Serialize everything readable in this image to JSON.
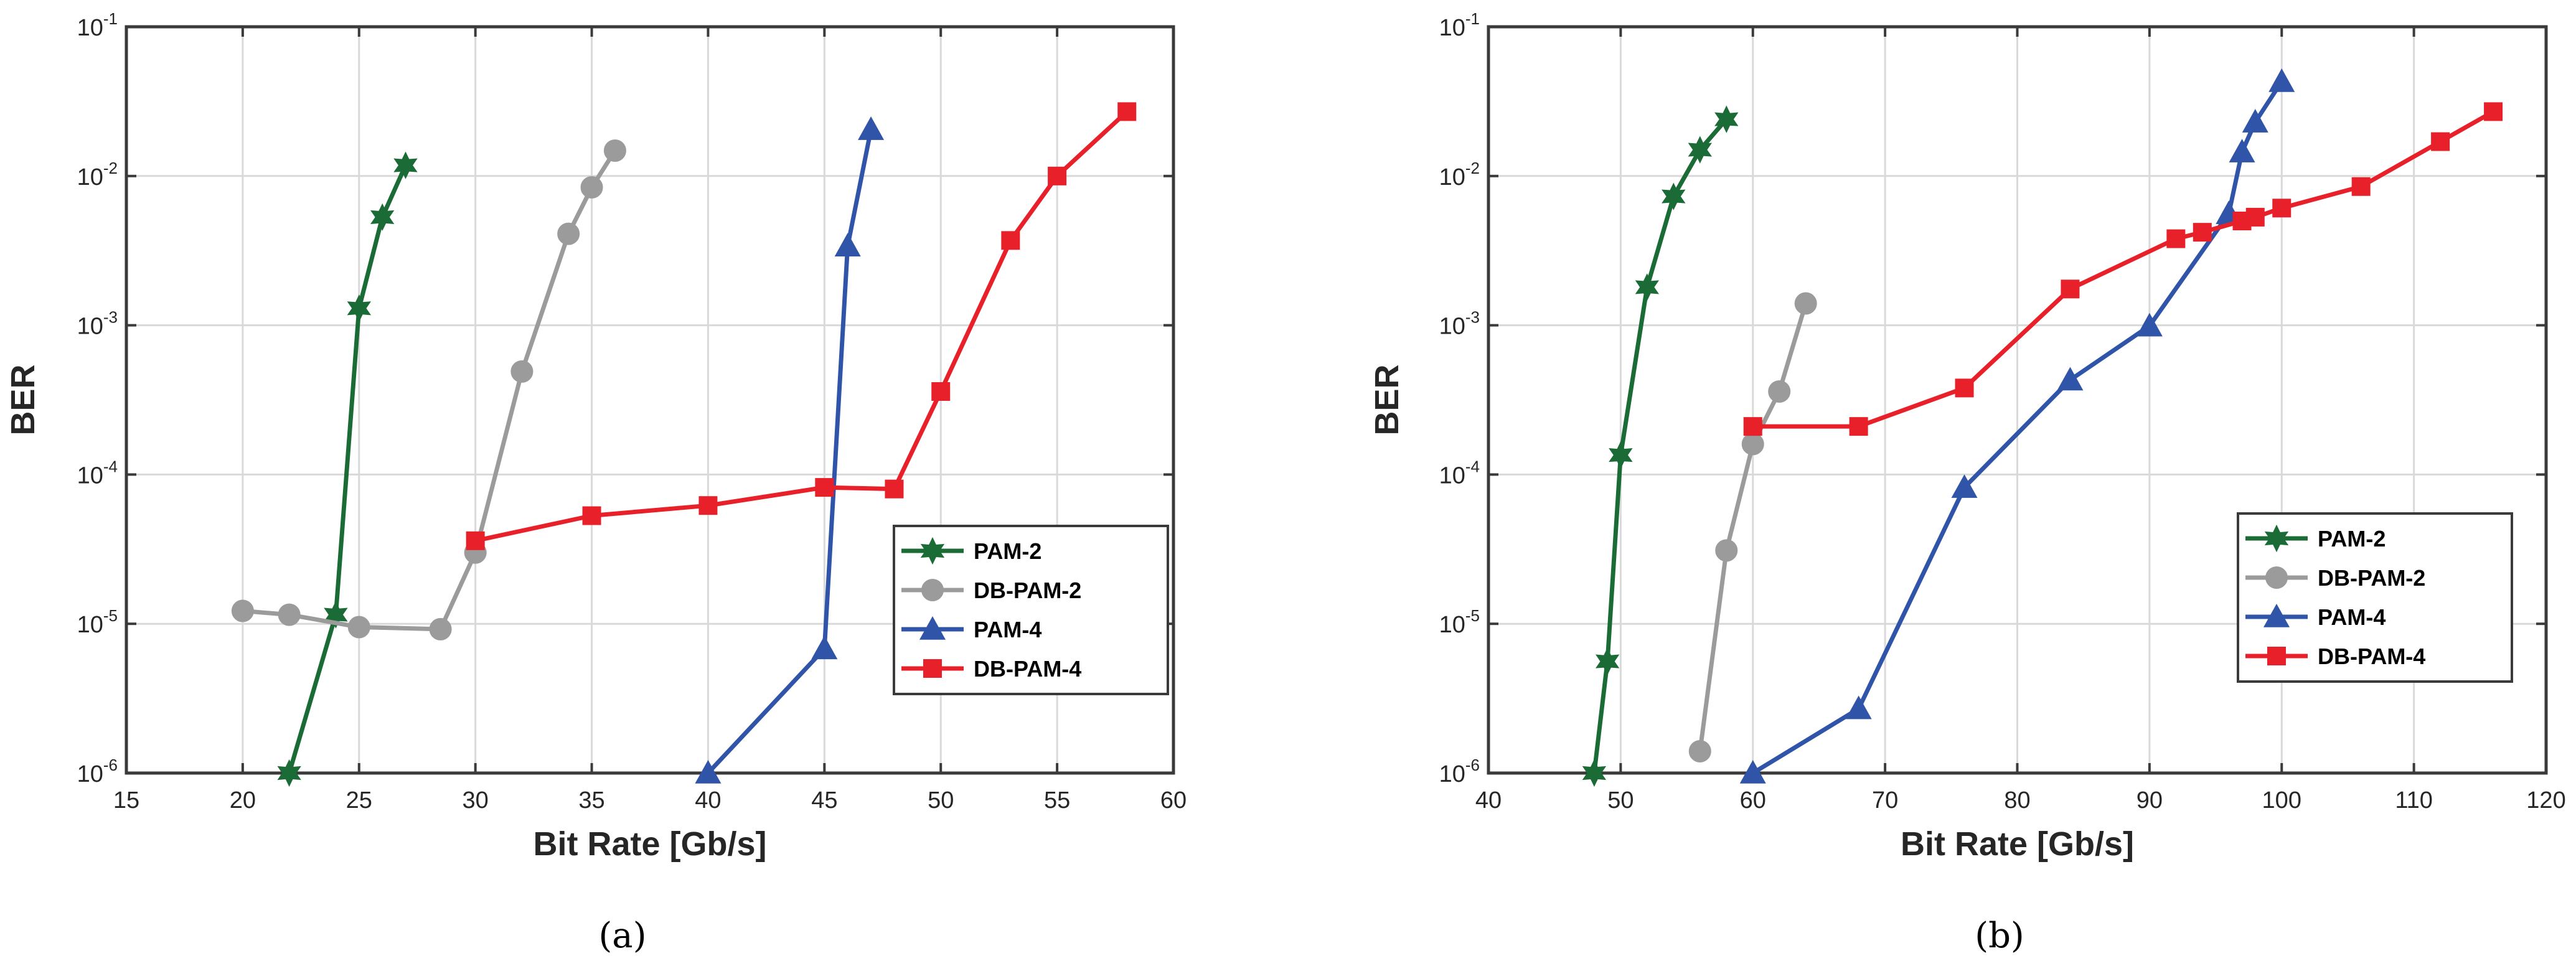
{
  "chart_data": [
    {
      "type": "line",
      "caption": "(a)",
      "title": "",
      "xlabel": "Bit Rate [Gb/s]",
      "ylabel": "BER",
      "xlim": [
        15,
        60
      ],
      "ylim": [
        1e-06,
        0.1
      ],
      "yscale": "log",
      "grid": true,
      "legend_position": "bottom-right",
      "x_ticks": [
        15,
        20,
        25,
        30,
        35,
        40,
        45,
        50,
        55,
        60
      ],
      "y_ticks": [
        -6,
        -5,
        -4,
        -3,
        -2,
        -1
      ],
      "series": [
        {
          "name": "PAM-2",
          "color": "#1a6b35",
          "marker": "star",
          "x": [
            22,
            24,
            25,
            26,
            27
          ],
          "y": [
            1e-06,
            1.15e-05,
            0.0013,
            0.0053,
            0.0118
          ]
        },
        {
          "name": "DB-PAM-2",
          "color": "#9b9b9b",
          "marker": "circle",
          "x": [
            20,
            22,
            25,
            28.5,
            30,
            32,
            34,
            35,
            36
          ],
          "y": [
            1.22e-05,
            1.15e-05,
            9.5e-06,
            9.2e-06,
            3e-05,
            0.00049,
            0.0041,
            0.0084,
            0.0148
          ]
        },
        {
          "name": "PAM-4",
          "color": "#2f54a8",
          "marker": "triangle",
          "x": [
            40,
            45,
            46,
            47
          ],
          "y": [
            1e-06,
            6.8e-06,
            0.0034,
            0.0205
          ]
        },
        {
          "name": "DB-PAM-4",
          "color": "#e8202a",
          "marker": "square",
          "x": [
            30,
            35,
            40,
            45,
            48,
            50,
            53,
            55,
            58
          ],
          "y": [
            3.6e-05,
            5.3e-05,
            6.2e-05,
            8.2e-05,
            8e-05,
            0.00036,
            0.0037,
            0.01,
            0.027
          ]
        }
      ]
    },
    {
      "type": "line",
      "caption": "(b)",
      "title": "",
      "xlabel": "Bit Rate [Gb/s]",
      "ylabel": "BER",
      "xlim": [
        40,
        120
      ],
      "ylim": [
        1e-06,
        0.1
      ],
      "yscale": "log",
      "grid": true,
      "legend_position": "bottom-right",
      "x_ticks": [
        40,
        50,
        60,
        70,
        80,
        90,
        100,
        110,
        120
      ],
      "y_ticks": [
        -6,
        -5,
        -4,
        -3,
        -2,
        -1
      ],
      "series": [
        {
          "name": "PAM-2",
          "color": "#1a6b35",
          "marker": "star",
          "x": [
            48,
            49,
            50,
            52,
            54,
            56,
            58
          ],
          "y": [
            1e-06,
            5.6e-06,
            0.000135,
            0.0018,
            0.0073,
            0.015,
            0.024
          ]
        },
        {
          "name": "DB-PAM-2",
          "color": "#9b9b9b",
          "marker": "circle",
          "x": [
            56,
            58,
            60,
            62,
            64
          ],
          "y": [
            1.4e-06,
            3.1e-05,
            0.00016,
            0.00036,
            0.0014
          ]
        },
        {
          "name": "PAM-4",
          "color": "#2f54a8",
          "marker": "triangle",
          "x": [
            60,
            68,
            76,
            84,
            90,
            96,
            97,
            98,
            100
          ],
          "y": [
            1e-06,
            2.7e-06,
            8.2e-05,
            0.00043,
            0.00099,
            0.0056,
            0.0145,
            0.023,
            0.043
          ]
        },
        {
          "name": "DB-PAM-4",
          "color": "#e8202a",
          "marker": "square",
          "x": [
            60,
            68,
            76,
            84,
            92,
            94,
            97,
            98,
            100,
            106,
            112,
            116
          ],
          "y": [
            0.00021,
            0.00021,
            0.00038,
            0.00175,
            0.0038,
            0.0042,
            0.005,
            0.0053,
            0.0061,
            0.0085,
            0.017,
            0.027
          ]
        }
      ]
    }
  ]
}
